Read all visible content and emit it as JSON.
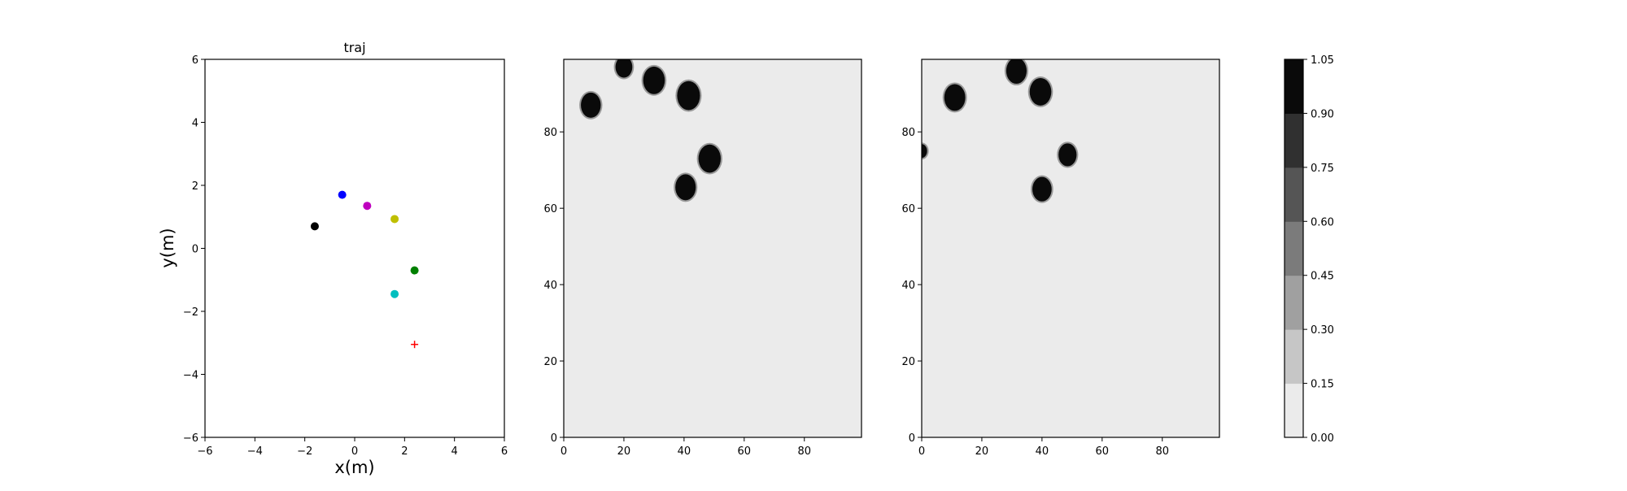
{
  "chart_data": [
    {
      "type": "scatter",
      "title": "traj",
      "xlabel": "x(m)",
      "ylabel": "y(m)",
      "xlim": [
        -6,
        6
      ],
      "ylim": [
        -6,
        6
      ],
      "xticks": [
        -6,
        -4,
        -2,
        0,
        2,
        4,
        6
      ],
      "yticks": [
        -6,
        -4,
        -2,
        0,
        2,
        4,
        6
      ],
      "grid": false,
      "points": [
        {
          "x": -0.5,
          "y": 1.7,
          "color": "#0000ff",
          "marker": "circle"
        },
        {
          "x": 0.5,
          "y": 1.35,
          "color": "#bf00bf",
          "marker": "circle"
        },
        {
          "x": 1.6,
          "y": 0.93,
          "color": "#bfbf00",
          "marker": "circle"
        },
        {
          "x": -1.6,
          "y": 0.7,
          "color": "#000000",
          "marker": "circle"
        },
        {
          "x": 2.4,
          "y": -0.7,
          "color": "#008000",
          "marker": "circle"
        },
        {
          "x": 1.6,
          "y": -1.45,
          "color": "#00bfbf",
          "marker": "circle"
        },
        {
          "x": 2.4,
          "y": -3.05,
          "color": "#ff0000",
          "marker": "plus"
        }
      ]
    },
    {
      "type": "heatmap",
      "title": "",
      "xlim": [
        0,
        99
      ],
      "ylim": [
        0,
        99
      ],
      "xticks": [
        0,
        20,
        40,
        60,
        80
      ],
      "yticks": [
        0,
        20,
        40,
        60,
        80
      ],
      "background_value": 0.05,
      "blobs": [
        {
          "x": 9,
          "y": 87,
          "r": 3.3
        },
        {
          "x": 20,
          "y": 97,
          "r": 2.8
        },
        {
          "x": 30,
          "y": 93.5,
          "r": 3.6
        },
        {
          "x": 41.5,
          "y": 89.5,
          "r": 3.8
        },
        {
          "x": 48.5,
          "y": 73,
          "r": 3.7
        },
        {
          "x": 40.5,
          "y": 65.5,
          "r": 3.4
        }
      ]
    },
    {
      "type": "heatmap",
      "title": "",
      "xlim": [
        0,
        99
      ],
      "ylim": [
        0,
        99
      ],
      "xticks": [
        0,
        20,
        40,
        60,
        80
      ],
      "yticks": [
        0,
        20,
        40,
        60,
        80
      ],
      "background_value": 0.05,
      "blobs": [
        {
          "x": 11,
          "y": 89,
          "r": 3.5
        },
        {
          "x": 31.5,
          "y": 96,
          "r": 3.4
        },
        {
          "x": 39.5,
          "y": 90.5,
          "r": 3.6
        },
        {
          "x": 48.5,
          "y": 74,
          "r": 3.0
        },
        {
          "x": 40,
          "y": 65,
          "r": 3.2
        },
        {
          "x": 0,
          "y": 75,
          "r": 1.8
        }
      ]
    },
    {
      "type": "colorbar",
      "ticks": [
        "0.00",
        "0.15",
        "0.30",
        "0.45",
        "0.60",
        "0.75",
        "0.90",
        "1.05"
      ],
      "colors": [
        "#ebebeb",
        "#c6c6c6",
        "#a0a0a0",
        "#7b7b7b",
        "#555555",
        "#303030",
        "#0a0a0a"
      ]
    }
  ]
}
